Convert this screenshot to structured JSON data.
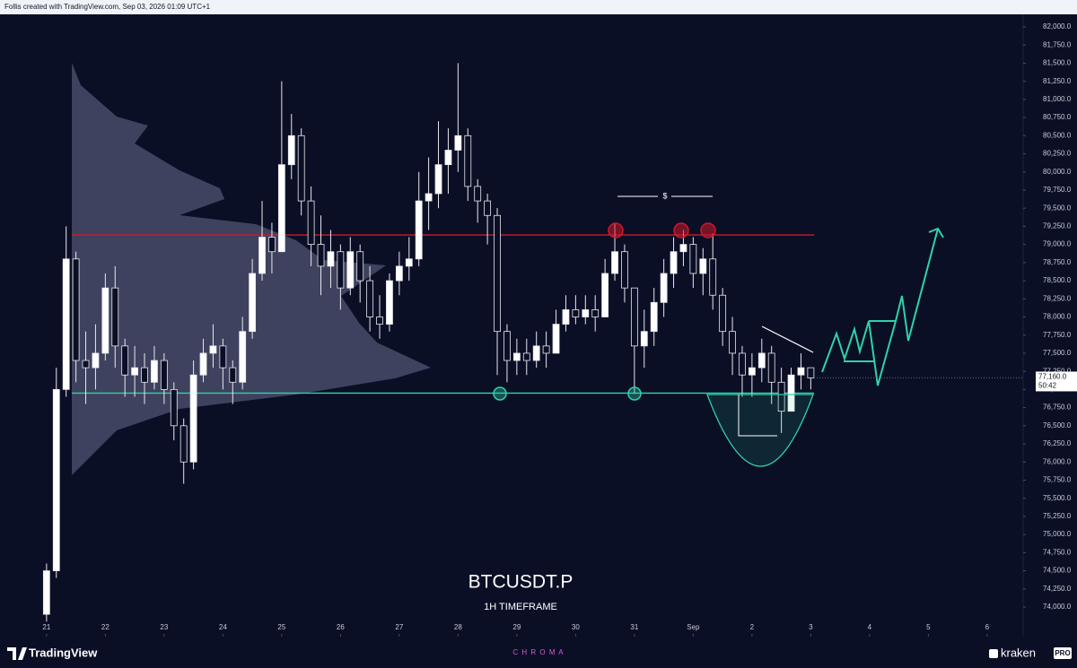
{
  "header": {
    "credit": "Follis created with TradingView.com, Sep 03, 2026 01:09 UTC+1"
  },
  "chart_data": {
    "type": "candlestick",
    "title": "BTCUSDT.P",
    "subtitle": "1H TIMEFRAME",
    "x": [
      0,
      4,
      8,
      12,
      16,
      20,
      24,
      28,
      32,
      36,
      40,
      44,
      48,
      52,
      56,
      60,
      64,
      68,
      72,
      76,
      80,
      84,
      88,
      92,
      96,
      100,
      104,
      108,
      112,
      116,
      120,
      124,
      128,
      132,
      136,
      140,
      144,
      148,
      152,
      156,
      160,
      164,
      168,
      172,
      176,
      180,
      184,
      188,
      192,
      196,
      200,
      204,
      208,
      212,
      216,
      220,
      224,
      228,
      232,
      236,
      240,
      244,
      248,
      252,
      256,
      260,
      264,
      268,
      272,
      276,
      280,
      284,
      288,
      292,
      296,
      300,
      304,
      308,
      312
    ],
    "open": [
      73900,
      74500,
      77000,
      78800,
      77400,
      77300,
      77500,
      78400,
      77600,
      77200,
      77300,
      77100,
      77400,
      77000,
      76500,
      76000,
      77200,
      77500,
      77600,
      77300,
      77100,
      77800,
      78600,
      79100,
      78900,
      80100,
      80500,
      79600,
      79000,
      78700,
      78900,
      78400,
      78900,
      78500,
      78000,
      77900,
      78500,
      78700,
      78800,
      79600,
      79700,
      80100,
      80300,
      80500,
      79800,
      79600,
      79400,
      77800,
      77400,
      77500,
      77400,
      77600,
      77500,
      77900,
      78100,
      78000,
      78100,
      78000,
      78600,
      78900,
      78400,
      77600,
      77800,
      78200,
      78600,
      78900,
      79000,
      78600,
      78800,
      78300,
      77800,
      77500,
      77200,
      77300,
      77500,
      77100,
      76700,
      77200,
      77300
    ],
    "high": [
      74600,
      77300,
      79250,
      78900,
      77800,
      77900,
      78600,
      78700,
      77700,
      77600,
      77500,
      77600,
      77500,
      77100,
      76600,
      77400,
      77700,
      77900,
      77700,
      77400,
      78000,
      78800,
      79600,
      79300,
      81250,
      80800,
      80600,
      79800,
      79400,
      79200,
      79000,
      79100,
      79000,
      78700,
      78300,
      78600,
      78900,
      79100,
      80000,
      80200,
      80700,
      80600,
      81500,
      80600,
      79900,
      79700,
      79500,
      77900,
      77700,
      77700,
      77800,
      77800,
      78100,
      78300,
      78300,
      78300,
      78300,
      78800,
      79300,
      79000,
      78400,
      78100,
      78400,
      78800,
      79100,
      79200,
      79100,
      78950,
      79150,
      78400,
      78000,
      77600,
      77500,
      77700,
      77600,
      77300,
      77300,
      77500,
      77300
    ],
    "low": [
      73800,
      74400,
      76900,
      77100,
      76800,
      77000,
      77400,
      77300,
      76900,
      76900,
      76800,
      77000,
      76800,
      76300,
      75700,
      75900,
      77100,
      77300,
      77000,
      76800,
      77000,
      77700,
      78500,
      78600,
      78900,
      79900,
      79400,
      78700,
      78300,
      78400,
      78100,
      78300,
      78200,
      77800,
      77700,
      77800,
      78300,
      78500,
      78700,
      79200,
      79500,
      79700,
      80000,
      79600,
      79300,
      79000,
      77200,
      77100,
      77200,
      77200,
      77300,
      77300,
      77500,
      77800,
      77900,
      77900,
      77800,
      78000,
      78500,
      78200,
      76950,
      77300,
      77600,
      78000,
      78400,
      78700,
      78400,
      78300,
      78100,
      77600,
      77200,
      76900,
      76900,
      77100,
      76800,
      76400,
      76700,
      77000,
      77000
    ],
    "close": [
      74500,
      77000,
      78800,
      77400,
      77300,
      77500,
      78400,
      77600,
      77200,
      77300,
      77100,
      77400,
      77000,
      76500,
      76000,
      77200,
      77500,
      77600,
      77300,
      77100,
      77800,
      78600,
      79100,
      78900,
      80100,
      80500,
      79600,
      79000,
      78700,
      78900,
      78400,
      78900,
      78500,
      78000,
      77900,
      78500,
      78700,
      78800,
      79600,
      79700,
      80100,
      80300,
      80500,
      79800,
      79600,
      79400,
      77800,
      77400,
      77500,
      77400,
      77600,
      77500,
      77900,
      78100,
      78000,
      78100,
      78000,
      78600,
      78900,
      78400,
      77600,
      77800,
      78200,
      78600,
      78900,
      79000,
      78600,
      78800,
      78300,
      77800,
      77500,
      77200,
      77300,
      77500,
      77100,
      76700,
      77200,
      77300,
      77160
    ],
    "up_color": "#ffffff",
    "down_color": "#0b0f26",
    "levels": [
      {
        "value": 79130,
        "color": "#d0182a"
      },
      {
        "value": 76950,
        "color": "#2fd3a8"
      }
    ],
    "last_price": {
      "value": 77160,
      "label": "77,160.0"
    },
    "countdown": "50:42",
    "xlim": [
      -19,
      398.7
    ],
    "ylim": [
      73592,
      82173
    ],
    "xticks": [
      {
        "value": 0,
        "label": "21"
      },
      {
        "value": 24,
        "label": "22"
      },
      {
        "value": 48,
        "label": "23"
      },
      {
        "value": 72,
        "label": "24"
      },
      {
        "value": 96,
        "label": "25"
      },
      {
        "value": 120,
        "label": "26"
      },
      {
        "value": 144,
        "label": "27"
      },
      {
        "value": 168,
        "label": "28"
      },
      {
        "value": 192,
        "label": "29"
      },
      {
        "value": 216,
        "label": "30"
      },
      {
        "value": 240,
        "label": "31"
      },
      {
        "value": 264,
        "label": "Sep"
      },
      {
        "value": 288,
        "label": "2"
      },
      {
        "value": 312,
        "label": "3"
      },
      {
        "value": 336,
        "label": "4"
      },
      {
        "value": 360,
        "label": "5"
      },
      {
        "value": 384,
        "label": "6"
      }
    ],
    "yticks": [
      {
        "value": 74000,
        "label": "74,000.0"
      },
      {
        "value": 74250,
        "label": "74,250.0"
      },
      {
        "value": 74500,
        "label": "74,500.0"
      },
      {
        "value": 74750,
        "label": "74,750.0"
      },
      {
        "value": 75000,
        "label": "75,000.0"
      },
      {
        "value": 75250,
        "label": "75,250.0"
      },
      {
        "value": 75500,
        "label": "75,500.0"
      },
      {
        "value": 75750,
        "label": "75,750.0"
      },
      {
        "value": 76000,
        "label": "76,000.0"
      },
      {
        "value": 76250,
        "label": "76,250.0"
      },
      {
        "value": 76500,
        "label": "76,500.0"
      },
      {
        "value": 76750,
        "label": "76,750.0"
      },
      {
        "value": 77000,
        "label": "77,000.0"
      },
      {
        "value": 77250,
        "label": "77,250.0"
      },
      {
        "value": 77500,
        "label": "77,500.0"
      },
      {
        "value": 77750,
        "label": "77,750.0"
      },
      {
        "value": 78000,
        "label": "78,000.0"
      },
      {
        "value": 78250,
        "label": "78,250.0"
      },
      {
        "value": 78500,
        "label": "78,500.0"
      },
      {
        "value": 78750,
        "label": "78,750.0"
      },
      {
        "value": 79000,
        "label": "79,000.0"
      },
      {
        "value": 79250,
        "label": "79,250.0"
      },
      {
        "value": 79500,
        "label": "79,500.0"
      },
      {
        "value": 79750,
        "label": "79,750.0"
      },
      {
        "value": 80000,
        "label": "80,000.0"
      },
      {
        "value": 80250,
        "label": "80,250.0"
      },
      {
        "value": 80500,
        "label": "80,500.0"
      },
      {
        "value": 80750,
        "label": "80,750.0"
      },
      {
        "value": 81000,
        "label": "81,000.0"
      },
      {
        "value": 81250,
        "label": "81,250.0"
      },
      {
        "value": 81500,
        "label": "81,500.0"
      },
      {
        "value": 81750,
        "label": "81,750.0"
      },
      {
        "value": 82000,
        "label": "82,000.0"
      }
    ],
    "annotation": "$"
  },
  "footer": {
    "brand": "TradingView",
    "sponsor": "C H R O M A",
    "broker": "kraken",
    "broker_tag": "PRO"
  }
}
